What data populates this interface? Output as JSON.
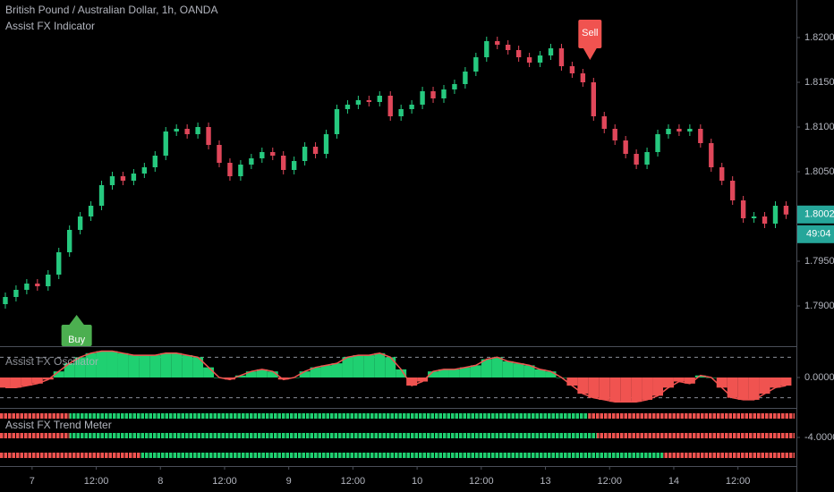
{
  "chart_data": [
    {
      "type": "candlestick",
      "title": "British Pound / Australian Dollar, 1h, OANDA",
      "subtitle": "Assist FX Indicator",
      "up_color": "#26c97f",
      "down_color": "#e0475a",
      "xlim": [
        -0.5,
        73.8
      ],
      "xticks": [
        {
          "value": 2.5,
          "label": "7"
        },
        {
          "value": 8.5,
          "label": "12:00"
        },
        {
          "value": 14.5,
          "label": "8"
        },
        {
          "value": 20.5,
          "label": "12:00"
        },
        {
          "value": 26.5,
          "label": "9"
        },
        {
          "value": 32.5,
          "label": "12:00"
        },
        {
          "value": 38.5,
          "label": "10"
        },
        {
          "value": 44.5,
          "label": "12:00"
        },
        {
          "value": 50.5,
          "label": "13"
        },
        {
          "value": 56.5,
          "label": "12:00"
        },
        {
          "value": 62.5,
          "label": "14"
        },
        {
          "value": 68.5,
          "label": "12:00"
        }
      ],
      "ylim": [
        1.7857,
        1.8242
      ],
      "yticks": [
        {
          "value": 1.82,
          "label": "1.82000"
        },
        {
          "value": 1.815,
          "label": "1.81500"
        },
        {
          "value": 1.81,
          "label": "1.81000"
        },
        {
          "value": 1.805,
          "label": "1.80500"
        },
        {
          "value": 1.795,
          "label": "1.79500"
        },
        {
          "value": 1.79,
          "label": "1.79000"
        }
      ],
      "open": [
        1.7902,
        1.791,
        1.7918,
        1.7925,
        1.7922,
        1.7935,
        1.796,
        1.7985,
        1.8,
        1.8012,
        1.8035,
        1.8045,
        1.804,
        1.8048,
        1.8055,
        1.8068,
        1.8095,
        1.8098,
        1.8092,
        1.81,
        1.808,
        1.806,
        1.8045,
        1.8058,
        1.8065,
        1.8072,
        1.8068,
        1.8052,
        1.8062,
        1.8078,
        1.807,
        1.8092,
        1.812,
        1.8125,
        1.813,
        1.8128,
        1.8135,
        1.8112,
        1.812,
        1.8125,
        1.814,
        1.8132,
        1.8142,
        1.8148,
        1.8162,
        1.8178,
        1.8196,
        1.8192,
        1.8186,
        1.8178,
        1.8172,
        1.818,
        1.8188,
        1.8168,
        1.816,
        1.815,
        1.8112,
        1.8098,
        1.8085,
        1.807,
        1.8058,
        1.8072,
        1.8092,
        1.8098,
        1.8095,
        1.8098,
        1.8082,
        1.8055,
        1.804,
        1.8018,
        1.7998,
        1.8,
        1.7992,
        1.8012
      ],
      "high": [
        1.7915,
        1.7923,
        1.793,
        1.793,
        1.794,
        1.7965,
        1.799,
        1.8005,
        1.8017,
        1.804,
        1.805,
        1.805,
        1.8053,
        1.806,
        1.8073,
        1.81,
        1.8103,
        1.8103,
        1.8105,
        1.8105,
        1.8085,
        1.8065,
        1.8063,
        1.807,
        1.8077,
        1.8077,
        1.8073,
        1.8067,
        1.8083,
        1.8083,
        1.8097,
        1.8125,
        1.813,
        1.8135,
        1.8135,
        1.814,
        1.814,
        1.8125,
        1.813,
        1.8145,
        1.8145,
        1.8147,
        1.8153,
        1.8167,
        1.8183,
        1.8201,
        1.8201,
        1.8197,
        1.8191,
        1.8183,
        1.8185,
        1.8193,
        1.8193,
        1.8173,
        1.8165,
        1.8155,
        1.8117,
        1.8103,
        1.809,
        1.8075,
        1.8077,
        1.8097,
        1.8103,
        1.8103,
        1.8103,
        1.8103,
        1.8087,
        1.806,
        1.8045,
        1.8023,
        1.8005,
        1.8005,
        1.8017,
        1.8017
      ],
      "low": [
        1.7897,
        1.7905,
        1.7913,
        1.7917,
        1.7917,
        1.793,
        1.7955,
        1.798,
        1.7995,
        1.8007,
        1.803,
        1.8035,
        1.8035,
        1.8043,
        1.805,
        1.8063,
        1.809,
        1.8087,
        1.8087,
        1.8075,
        1.8055,
        1.804,
        1.804,
        1.8053,
        1.806,
        1.8063,
        1.8047,
        1.8047,
        1.8057,
        1.8065,
        1.8065,
        1.8087,
        1.8115,
        1.812,
        1.8123,
        1.8123,
        1.8107,
        1.8107,
        1.8115,
        1.812,
        1.8127,
        1.8127,
        1.8137,
        1.8143,
        1.8157,
        1.8173,
        1.8187,
        1.8181,
        1.8173,
        1.8167,
        1.8167,
        1.8175,
        1.8163,
        1.8155,
        1.8145,
        1.8107,
        1.8093,
        1.808,
        1.8065,
        1.8053,
        1.8053,
        1.8067,
        1.8087,
        1.809,
        1.809,
        1.8077,
        1.805,
        1.8035,
        1.8013,
        1.7993,
        1.7993,
        1.7987,
        1.7987,
        1.79972
      ],
      "close": [
        1.791,
        1.7918,
        1.7925,
        1.7922,
        1.7935,
        1.796,
        1.7985,
        1.8,
        1.8012,
        1.8035,
        1.8045,
        1.804,
        1.8048,
        1.8055,
        1.8068,
        1.8095,
        1.8098,
        1.8092,
        1.81,
        1.808,
        1.806,
        1.8045,
        1.8058,
        1.8065,
        1.8072,
        1.8068,
        1.8052,
        1.8062,
        1.8078,
        1.807,
        1.8092,
        1.812,
        1.8125,
        1.813,
        1.8128,
        1.8135,
        1.8112,
        1.812,
        1.8125,
        1.814,
        1.8132,
        1.8142,
        1.8148,
        1.8162,
        1.8178,
        1.8196,
        1.8192,
        1.8186,
        1.8178,
        1.8172,
        1.818,
        1.8188,
        1.8168,
        1.816,
        1.815,
        1.8112,
        1.8098,
        1.8085,
        1.807,
        1.8058,
        1.8072,
        1.8092,
        1.8098,
        1.8095,
        1.8098,
        1.8082,
        1.8055,
        1.804,
        1.8018,
        1.7998,
        1.8,
        1.7992,
        1.8012,
        1.80022
      ],
      "price_label_color": "#26a69a",
      "countdown": "49:04",
      "signals": [
        {
          "index": 7,
          "label": "Buy",
          "type": "buy",
          "color": "#4caf50"
        },
        {
          "index": 55,
          "label": "Sell",
          "type": "sell",
          "color": "#f05350"
        }
      ]
    },
    {
      "type": "oscillator",
      "title": "Assist FX Oscillator",
      "ylim": [
        -1.5,
        1.5
      ],
      "yticks": [
        {
          "value": 0,
          "label": "0.00000"
        }
      ],
      "levels": [
        1,
        -1
      ],
      "pos_color": "#1fd071",
      "neg_color": "#f05350",
      "values": [
        -0.5,
        -0.5,
        -0.4,
        -0.3,
        -0.1,
        0.3,
        0.7,
        1.0,
        1.2,
        1.3,
        1.3,
        1.2,
        1.1,
        1.1,
        1.1,
        1.2,
        1.2,
        1.1,
        1.0,
        0.5,
        0.0,
        -0.1,
        0.1,
        0.3,
        0.4,
        0.3,
        -0.1,
        0.0,
        0.3,
        0.5,
        0.6,
        0.7,
        1.0,
        1.1,
        1.1,
        1.2,
        1.0,
        0.4,
        -0.4,
        -0.2,
        0.3,
        0.4,
        0.4,
        0.5,
        0.6,
        0.9,
        1.0,
        0.8,
        0.7,
        0.6,
        0.4,
        0.3,
        0.0,
        -0.4,
        -0.8,
        -1.0,
        -1.1,
        -1.2,
        -1.2,
        -1.2,
        -1.1,
        -0.9,
        -0.5,
        -0.2,
        -0.3,
        0.1,
        0.0,
        -0.5,
        -1.0,
        -1.1,
        -1.1,
        -0.8,
        -0.5,
        -0.4
      ]
    },
    {
      "type": "trend_meter",
      "title": "Assist FX Trend Meter",
      "ylim": [
        -6.2,
        -1.8
      ],
      "yticks": [
        {
          "value": -4,
          "label": "-4.00000"
        }
      ],
      "bull_color": "#1fd071",
      "bear_color": "#f05350",
      "rows": [
        {
          "segments": [
            [
              -0.5,
              6,
              -1
            ],
            [
              6,
              54.5,
              1
            ],
            [
              54.5,
              73.8,
              -1
            ]
          ]
        },
        {
          "segments": [
            [
              -0.5,
              6,
              -1
            ],
            [
              6,
              55.3,
              1
            ],
            [
              55.3,
              73.8,
              -1
            ]
          ]
        },
        {
          "segments": [
            [
              -0.5,
              12.7,
              -1
            ],
            [
              12.7,
              61.5,
              1
            ],
            [
              61.5,
              73.8,
              -1
            ]
          ]
        }
      ]
    }
  ]
}
